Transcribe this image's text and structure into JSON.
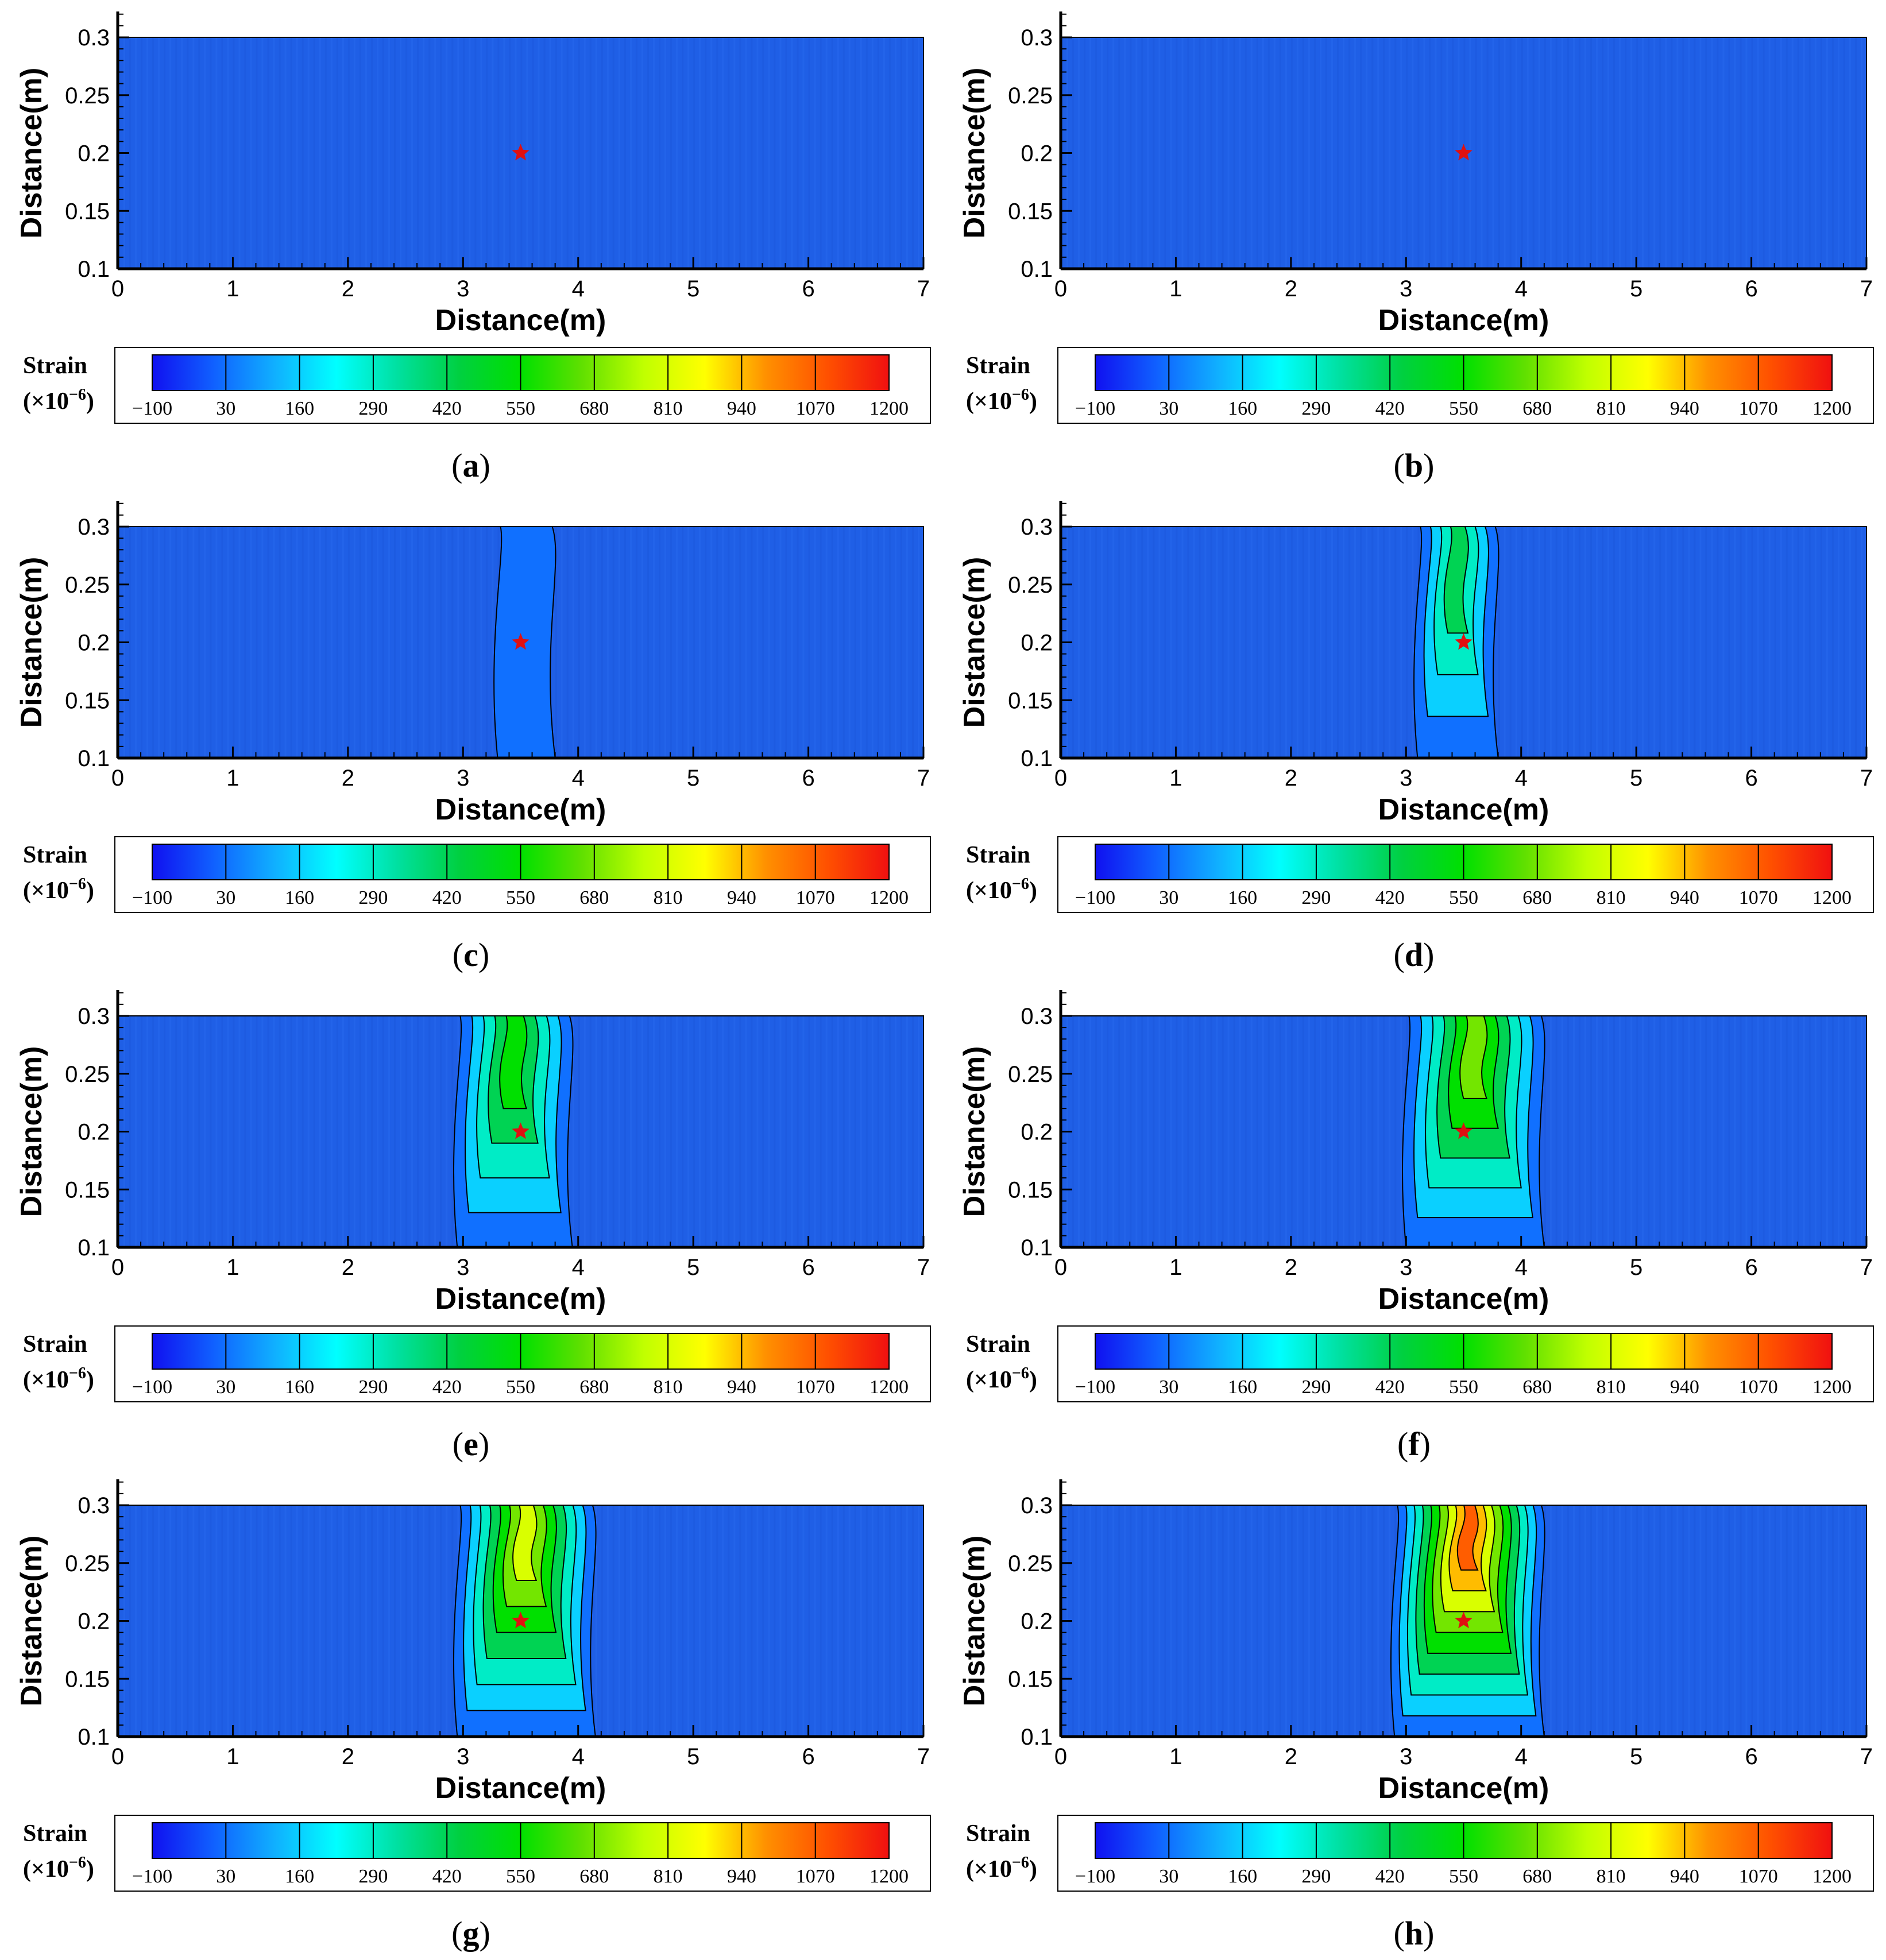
{
  "colors": {
    "background_strain": "#1f5fe6",
    "contour_line": "#000000",
    "marker": "#e01010",
    "colorbar_stops": [
      "#1010f0",
      "#1060ff",
      "#10b0ff",
      "#00ffff",
      "#00e0a0",
      "#00d040",
      "#00e000",
      "#60e000",
      "#c0ff00",
      "#ffff00",
      "#ff9000",
      "#ff5000",
      "#f01010"
    ]
  },
  "chart_data": [
    {
      "type": "heatmap",
      "panel": "(a)",
      "label": "a",
      "xlabel": "Distance(m)",
      "ylabel": "Distance(m)",
      "xlim": [
        0,
        7
      ],
      "ylim": [
        0.1,
        0.3
      ],
      "x_ticks": [
        "0",
        "1",
        "2",
        "3",
        "4",
        "5",
        "6",
        "7"
      ],
      "y_ticks": [
        "0.1",
        "0.15",
        "0.2",
        "0.25",
        "0.3"
      ],
      "marker": {
        "x": 3.5,
        "y": 0.2
      },
      "peak_strain": [],
      "colorbar": {
        "title": "Strain",
        "unit": "(×10",
        "unit_exp": "−6",
        "unit_close": ")",
        "ticks": [
          "−100",
          "30",
          "160",
          "290",
          "420",
          "550",
          "680",
          "810",
          "940",
          "1070",
          "1200"
        ]
      }
    },
    {
      "type": "heatmap",
      "panel": "(b)",
      "label": "b",
      "xlabel": "Distance(m)",
      "ylabel": "Distance(m)",
      "xlim": [
        0,
        7
      ],
      "ylim": [
        0.1,
        0.3
      ],
      "x_ticks": [
        "0",
        "1",
        "2",
        "3",
        "4",
        "5",
        "6",
        "7"
      ],
      "y_ticks": [
        "0.1",
        "0.15",
        "0.2",
        "0.25",
        "0.3"
      ],
      "marker": {
        "x": 3.5,
        "y": 0.2
      },
      "peak_strain": [],
      "colorbar": {
        "title": "Strain",
        "unit": "(×10",
        "unit_exp": "−6",
        "unit_close": ")",
        "ticks": [
          "−100",
          "30",
          "160",
          "290",
          "420",
          "550",
          "680",
          "810",
          "940",
          "1070",
          "1200"
        ]
      }
    },
    {
      "type": "heatmap",
      "panel": "(c)",
      "label": "c",
      "xlabel": "Distance(m)",
      "ylabel": "Distance(m)",
      "xlim": [
        0,
        7
      ],
      "ylim": [
        0.1,
        0.3
      ],
      "x_ticks": [
        "0",
        "1",
        "2",
        "3",
        "4",
        "5",
        "6",
        "7"
      ],
      "y_ticks": [
        "0.1",
        "0.15",
        "0.2",
        "0.25",
        "0.3"
      ],
      "marker": {
        "x": 3.5,
        "y": 0.2
      },
      "peak_strain": [
        {
          "x_center": 3.55,
          "x_halfwidth": 0.25,
          "y_from": 0.1,
          "y_to": 0.3,
          "max": 50
        }
      ],
      "colorbar": {
        "title": "Strain",
        "unit": "(×10",
        "unit_exp": "−6",
        "unit_close": ")",
        "ticks": [
          "−100",
          "30",
          "160",
          "290",
          "420",
          "550",
          "680",
          "810",
          "940",
          "1070",
          "1200"
        ]
      }
    },
    {
      "type": "heatmap",
      "panel": "(d)",
      "label": "d",
      "xlabel": "Distance(m)",
      "ylabel": "Distance(m)",
      "xlim": [
        0,
        7
      ],
      "ylim": [
        0.1,
        0.3
      ],
      "x_ticks": [
        "0",
        "1",
        "2",
        "3",
        "4",
        "5",
        "6",
        "7"
      ],
      "y_ticks": [
        "0.1",
        "0.15",
        "0.2",
        "0.25",
        "0.3"
      ],
      "marker": {
        "x": 3.5,
        "y": 0.2
      },
      "peak_strain": [
        {
          "x_center": 3.45,
          "x_halfwidth": 0.35,
          "y_from": 0.1,
          "y_to": 0.3,
          "max": 420
        }
      ],
      "colorbar": {
        "title": "Strain",
        "unit": "(×10",
        "unit_exp": "−6",
        "unit_close": ")",
        "ticks": [
          "−100",
          "30",
          "160",
          "290",
          "420",
          "550",
          "680",
          "810",
          "940",
          "1070",
          "1200"
        ]
      }
    },
    {
      "type": "heatmap",
      "panel": "(e)",
      "label": "e",
      "xlabel": "Distance(m)",
      "ylabel": "Distance(m)",
      "xlim": [
        0,
        7
      ],
      "ylim": [
        0.1,
        0.3
      ],
      "x_ticks": [
        "0",
        "1",
        "2",
        "3",
        "4",
        "5",
        "6",
        "7"
      ],
      "y_ticks": [
        "0.1",
        "0.15",
        "0.2",
        "0.25",
        "0.3"
      ],
      "marker": {
        "x": 3.5,
        "y": 0.2
      },
      "peak_strain": [
        {
          "x_center": 3.45,
          "x_halfwidth": 0.5,
          "y_from": 0.1,
          "y_to": 0.3,
          "max": 600
        }
      ],
      "colorbar": {
        "title": "Strain",
        "unit": "(×10",
        "unit_exp": "−6",
        "unit_close": ")",
        "ticks": [
          "−100",
          "30",
          "160",
          "290",
          "420",
          "550",
          "680",
          "810",
          "940",
          "1070",
          "1200"
        ]
      }
    },
    {
      "type": "heatmap",
      "panel": "(f)",
      "label": "f",
      "xlabel": "Distance(m)",
      "ylabel": "Distance(m)",
      "xlim": [
        0,
        7
      ],
      "ylim": [
        0.1,
        0.3
      ],
      "x_ticks": [
        "0",
        "1",
        "2",
        "3",
        "4",
        "5",
        "6",
        "7"
      ],
      "y_ticks": [
        "0.1",
        "0.15",
        "0.2",
        "0.25",
        "0.3"
      ],
      "marker": {
        "x": 3.5,
        "y": 0.2
      },
      "peak_strain": [
        {
          "x_center": 3.6,
          "x_halfwidth": 0.6,
          "y_from": 0.1,
          "y_to": 0.3,
          "max": 700
        }
      ],
      "colorbar": {
        "title": "Strain",
        "unit": "(×10",
        "unit_exp": "−6",
        "unit_close": ")",
        "ticks": [
          "−100",
          "30",
          "160",
          "290",
          "420",
          "550",
          "680",
          "810",
          "940",
          "1070",
          "1200"
        ]
      }
    },
    {
      "type": "heatmap",
      "panel": "(g)",
      "label": "g",
      "xlabel": "Distance(m)",
      "ylabel": "Distance(m)",
      "xlim": [
        0,
        7
      ],
      "ylim": [
        0.1,
        0.3
      ],
      "x_ticks": [
        "0",
        "1",
        "2",
        "3",
        "4",
        "5",
        "6",
        "7"
      ],
      "y_ticks": [
        "0.1",
        "0.15",
        "0.2",
        "0.25",
        "0.3"
      ],
      "marker": {
        "x": 3.5,
        "y": 0.2
      },
      "peak_strain": [
        {
          "x_center": 3.55,
          "x_halfwidth": 0.6,
          "y_from": 0.1,
          "y_to": 0.3,
          "max": 900
        }
      ],
      "colorbar": {
        "title": "Strain",
        "unit": "(×10",
        "unit_exp": "−6",
        "unit_close": ")",
        "ticks": [
          "−100",
          "30",
          "160",
          "290",
          "420",
          "550",
          "680",
          "810",
          "940",
          "1070",
          "1200"
        ]
      }
    },
    {
      "type": "heatmap",
      "panel": "(h)",
      "label": "h",
      "xlabel": "Distance(m)",
      "ylabel": "Distance(m)",
      "xlim": [
        0,
        7
      ],
      "ylim": [
        0.1,
        0.3
      ],
      "x_ticks": [
        "0",
        "1",
        "2",
        "3",
        "4",
        "5",
        "6",
        "7"
      ],
      "y_ticks": [
        "0.1",
        "0.15",
        "0.2",
        "0.25",
        "0.3"
      ],
      "marker": {
        "x": 3.5,
        "y": 0.2
      },
      "peak_strain": [
        {
          "x_center": 3.55,
          "x_halfwidth": 0.65,
          "y_from": 0.1,
          "y_to": 0.3,
          "max": 1150
        }
      ],
      "colorbar": {
        "title": "Strain",
        "unit": "(×10",
        "unit_exp": "−6",
        "unit_close": ")",
        "ticks": [
          "−100",
          "30",
          "160",
          "290",
          "420",
          "550",
          "680",
          "810",
          "940",
          "1070",
          "1200"
        ]
      }
    }
  ]
}
